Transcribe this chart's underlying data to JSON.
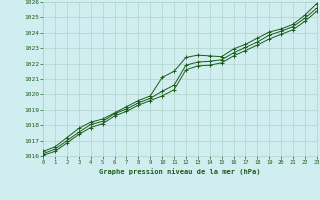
{
  "xlabel": "Graphe pression niveau de la mer (hPa)",
  "ylim": [
    1016,
    1026
  ],
  "xlim": [
    0,
    23
  ],
  "yticks": [
    1016,
    1017,
    1018,
    1019,
    1020,
    1021,
    1022,
    1023,
    1024,
    1025,
    1026
  ],
  "xticks": [
    0,
    1,
    2,
    3,
    4,
    5,
    6,
    7,
    8,
    9,
    10,
    11,
    12,
    13,
    14,
    15,
    16,
    17,
    18,
    19,
    20,
    21,
    22,
    23
  ],
  "background_color": "#d0eef0",
  "grid_color": "#b0d4cc",
  "line_color": "#1a5c1a",
  "series1": [
    1016.3,
    1016.6,
    1017.2,
    1017.8,
    1018.2,
    1018.4,
    1018.8,
    1019.2,
    1019.6,
    1019.9,
    1021.1,
    1021.5,
    1022.4,
    1022.55,
    1022.5,
    1022.45,
    1022.95,
    1023.25,
    1023.65,
    1024.05,
    1024.25,
    1024.55,
    1025.15,
    1025.9
  ],
  "series2": [
    1016.15,
    1016.45,
    1017.0,
    1017.55,
    1018.05,
    1018.25,
    1018.75,
    1019.05,
    1019.45,
    1019.75,
    1020.2,
    1020.6,
    1021.9,
    1022.1,
    1022.15,
    1022.25,
    1022.7,
    1023.05,
    1023.4,
    1023.85,
    1024.1,
    1024.4,
    1024.95,
    1025.6
  ],
  "series3": [
    1016.05,
    1016.3,
    1016.85,
    1017.4,
    1017.85,
    1018.1,
    1018.6,
    1018.9,
    1019.3,
    1019.6,
    1019.9,
    1020.3,
    1021.6,
    1021.85,
    1021.9,
    1022.05,
    1022.5,
    1022.85,
    1023.2,
    1023.6,
    1023.9,
    1024.2,
    1024.75,
    1025.4
  ]
}
